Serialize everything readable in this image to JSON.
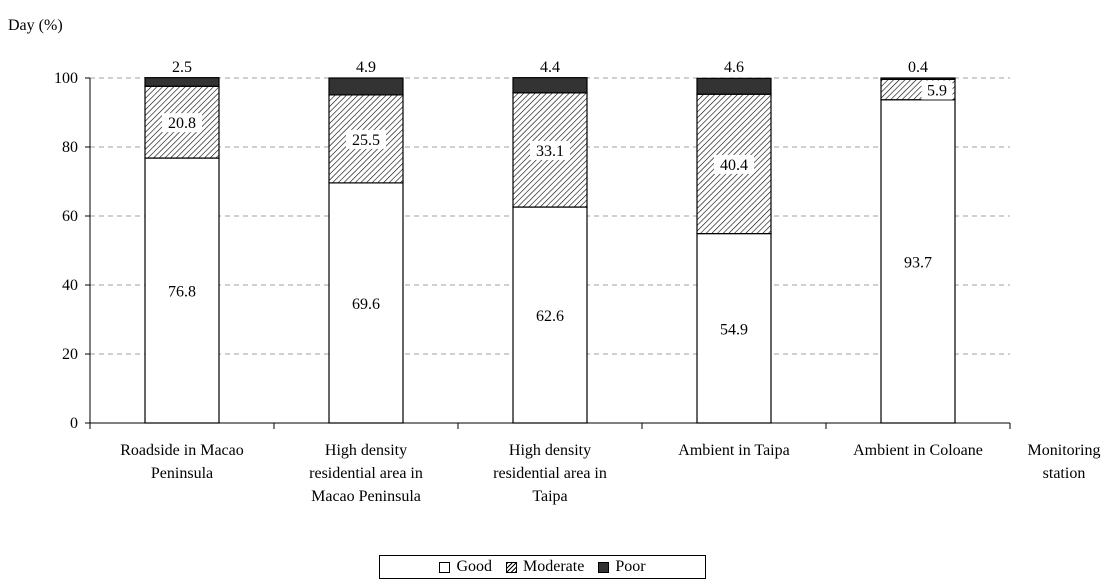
{
  "chart_data": {
    "type": "bar",
    "stacked": true,
    "categories": [
      [
        "Roadside in Macao",
        "Peninsula"
      ],
      [
        "High density",
        "residential area in",
        "Macao Peninsula"
      ],
      [
        "High density",
        "residential area in",
        "Taipa"
      ],
      [
        "Ambient in Taipa"
      ],
      [
        "Ambient in Coloane"
      ]
    ],
    "series": [
      {
        "name": "Good",
        "values": [
          76.8,
          69.6,
          62.6,
          54.9,
          93.7
        ],
        "color": "#ffffff",
        "pattern": "none"
      },
      {
        "name": "Moderate",
        "values": [
          20.8,
          25.5,
          33.1,
          40.4,
          5.9
        ],
        "color": "#ffffff",
        "pattern": "diagonal-hatch"
      },
      {
        "name": "Poor",
        "values": [
          2.5,
          4.9,
          4.4,
          4.6,
          0.4
        ],
        "color": "#333333",
        "pattern": "solid"
      }
    ],
    "ylabel": "Day (%)",
    "xlabel": [
      "Monitoring",
      "station"
    ],
    "ylim": [
      0,
      100
    ],
    "yticks": [
      0,
      20,
      40,
      60,
      80,
      100
    ],
    "grid": true,
    "legend_position": "bottom-center"
  },
  "legend": {
    "good": "Good",
    "moderate": "Moderate",
    "poor": "Poor"
  }
}
